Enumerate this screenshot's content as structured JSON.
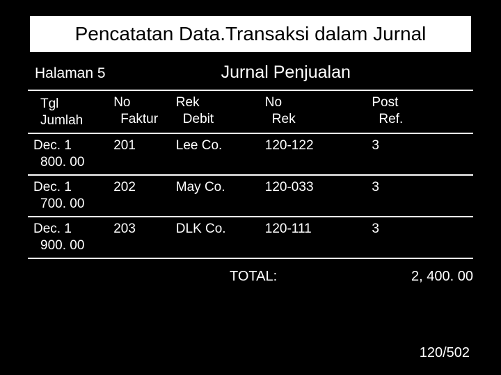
{
  "title": "Pencatatan Data.Transaksi dalam Jurnal",
  "page_label": "Halaman 5",
  "journal_name": "Jurnal Penjualan",
  "columns": [
    {
      "line1": "",
      "line2": "Tgl",
      "line3": "Jumlah"
    },
    {
      "line1": "No",
      "line2": "Faktur",
      "line3": ""
    },
    {
      "line1": "Rek",
      "line2": "Debit",
      "line3": ""
    },
    {
      "line1": "No",
      "line2": "Rek",
      "line3": ""
    },
    {
      "line1": "Post",
      "line2": "Ref.",
      "line3": ""
    }
  ],
  "rows": [
    {
      "c1a": "Dec. 1",
      "c1b": "800. 00",
      "c2": "201",
      "c3": "Lee  Co.",
      "c4": "120-122",
      "c5": "3"
    },
    {
      "c1a": "Dec. 1",
      "c1b": "700. 00",
      "c2": "202",
      "c3": "May Co.",
      "c4": "120-033",
      "c5": "3"
    },
    {
      "c1a": "Dec. 1",
      "c1b": "900. 00",
      "c2": "203",
      "c3": "DLK Co.",
      "c4": "120-111",
      "c5": "3"
    }
  ],
  "total_label": "TOTAL:",
  "total_value": "2, 400. 00",
  "pager": "120/502",
  "colors": {
    "bg": "#000000",
    "text_light": "#ffffff",
    "text_dark": "#000000",
    "title_bg": "#ffffff",
    "border": "#ffffff"
  }
}
